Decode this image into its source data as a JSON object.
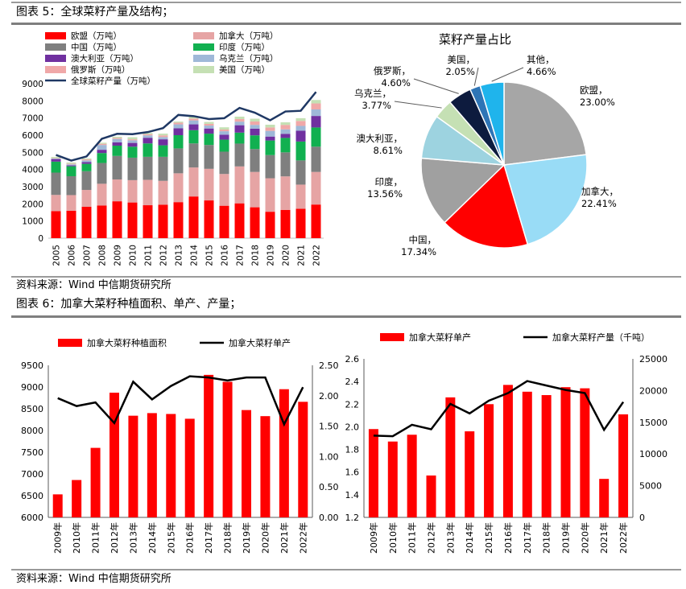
{
  "figures": {
    "fig5": {
      "title": "图表 5：全球菜籽产量及结构；"
    },
    "fig6": {
      "title": "图表 6：加拿大菜籽种植面积、单产、产量；"
    },
    "source1": "资料来源：Wind 中信期货研究所",
    "source2": "资料来源：Wind 中信期货研究所"
  },
  "chart_data": [
    {
      "id": "global-stacked",
      "type": "bar",
      "stacked": true,
      "categories": [
        "2005",
        "2006",
        "2007",
        "2008",
        "2009",
        "2010",
        "2011",
        "2012",
        "2013",
        "2014",
        "2015",
        "2016",
        "2017",
        "2018",
        "2019",
        "2020",
        "2021",
        "2022"
      ],
      "ylim": [
        0,
        9000
      ],
      "yticks": [
        0,
        1000,
        2000,
        3000,
        4000,
        5000,
        6000,
        7000,
        8000,
        9000
      ],
      "legend_position": "top-left",
      "series": [
        {
          "name": "欧盟（万吨）",
          "color": "#ff0000",
          "values": [
            1580,
            1600,
            1830,
            1900,
            2150,
            2080,
            1920,
            1950,
            2100,
            2430,
            2200,
            1890,
            2030,
            1800,
            1540,
            1650,
            1710,
            1960
          ]
        },
        {
          "name": "加拿大（万吨）",
          "color": "#e6a4a4",
          "values": [
            940,
            910,
            980,
            1270,
            1270,
            1300,
            1480,
            1390,
            1680,
            1690,
            1840,
            1850,
            2150,
            2060,
            1950,
            1950,
            1410,
            1900
          ]
        },
        {
          "name": "中国（万吨）",
          "color": "#7f7f7f",
          "values": [
            1300,
            1100,
            1090,
            1210,
            1370,
            1310,
            1340,
            1400,
            1450,
            1400,
            1390,
            1300,
            1330,
            1330,
            1350,
            1400,
            1410,
            1470
          ]
        },
        {
          "name": "印度（万吨）",
          "color": "#11b050",
          "values": [
            640,
            580,
            430,
            580,
            600,
            640,
            780,
            670,
            770,
            770,
            660,
            700,
            640,
            800,
            850,
            840,
            1100,
            1120
          ]
        },
        {
          "name": "澳大利亚（万吨）",
          "color": "#7030a0",
          "values": [
            150,
            50,
            100,
            190,
            190,
            220,
            330,
            350,
            400,
            340,
            300,
            290,
            430,
            390,
            230,
            240,
            630,
            670
          ]
        },
        {
          "name": "乌克兰（万吨）",
          "color": "#9fb8d8",
          "values": [
            30,
            60,
            100,
            280,
            200,
            150,
            140,
            130,
            230,
            230,
            170,
            200,
            210,
            220,
            330,
            260,
            280,
            380
          ]
        },
        {
          "name": "俄罗斯（万吨）",
          "color": "#f0a8a8",
          "values": [
            20,
            40,
            60,
            70,
            60,
            60,
            70,
            100,
            100,
            110,
            100,
            100,
            150,
            200,
            200,
            260,
            290,
            350
          ]
        },
        {
          "name": "美国（万吨）",
          "color": "#c5e0b4",
          "values": [
            70,
            70,
            50,
            60,
            70,
            120,
            70,
            100,
            60,
            110,
            110,
            130,
            140,
            160,
            160,
            150,
            160,
            200
          ]
        }
      ],
      "line": {
        "name": "全球菜籽产量（万吨）",
        "color": "#1f3864",
        "values": [
          4850,
          4520,
          4760,
          5790,
          6080,
          6060,
          6180,
          6410,
          7180,
          7110,
          6940,
          6990,
          7590,
          7310,
          6870,
          7380,
          7420,
          8520
        ]
      }
    },
    {
      "id": "global-share",
      "type": "pie",
      "title": "菜籽产量占比",
      "slices": [
        {
          "name": "欧盟",
          "value": 23.0,
          "label": "23.00%",
          "color": "#a6a6a6"
        },
        {
          "name": "加拿大",
          "value": 22.41,
          "label": "22.41%",
          "color": "#99dcf6"
        },
        {
          "name": "中国",
          "value": 17.34,
          "label": "17.34%",
          "color": "#ff0000"
        },
        {
          "name": "印度",
          "value": 13.56,
          "label": "13.56%",
          "color": "#a0a0a0"
        },
        {
          "name": "澳大利亚",
          "value": 8.61,
          "label": "8.61%",
          "color": "#9dd3e0"
        },
        {
          "name": "乌克兰",
          "value": 3.77,
          "label": "3.77%",
          "color": "#c5e0b4"
        },
        {
          "name": "俄罗斯",
          "value": 4.6,
          "label": "4.60%",
          "color": "#0d1b3e"
        },
        {
          "name": "美国",
          "value": 2.05,
          "label": "2.05%",
          "color": "#2e75b6"
        },
        {
          "name": "其他",
          "value": 4.66,
          "label": "4.66%",
          "color": "#1fb4ec"
        }
      ]
    },
    {
      "id": "canada-area-yield",
      "type": "bar",
      "categories": [
        "2009年",
        "2010年",
        "2011年",
        "2012年",
        "2013年",
        "2014年",
        "2015年",
        "2016年",
        "2017年",
        "2018年",
        "2019年",
        "2020年",
        "2021年",
        "2022年"
      ],
      "ylim": [
        6000,
        9500
      ],
      "yticks": [
        6000,
        6500,
        7000,
        7500,
        8000,
        8500,
        9000,
        9500
      ],
      "y2lim": [
        0,
        2.5
      ],
      "y2ticks": [
        "0.00",
        "0.50",
        "1.00",
        "1.50",
        "2.00",
        "2.50"
      ],
      "legend_position": "top",
      "series": [
        {
          "name": "加拿大菜籽种植面积",
          "color": "#ff0000",
          "values": [
            6530,
            6860,
            7600,
            8870,
            8340,
            8400,
            8380,
            8270,
            9280,
            9120,
            8470,
            8330,
            8950,
            8660
          ]
        }
      ],
      "line": {
        "name": "加拿大菜籽单产",
        "color": "#000000",
        "values": [
          1.96,
          1.83,
          1.89,
          1.55,
          2.23,
          1.94,
          2.16,
          2.32,
          2.3,
          2.25,
          2.3,
          2.3,
          1.53,
          2.14
        ]
      }
    },
    {
      "id": "canada-yield-output",
      "type": "bar",
      "categories": [
        "2009年",
        "2010年",
        "2011年",
        "2012年",
        "2013年",
        "2014年",
        "2015年",
        "2016年",
        "2017年",
        "2018年",
        "2019年",
        "2020年",
        "2021年",
        "2022年"
      ],
      "ylim": [
        1.2,
        2.6
      ],
      "yticks": [
        "1.2",
        "1.4",
        "1.6",
        "1.8",
        "2.0",
        "2.2",
        "2.4",
        "2.6"
      ],
      "y2lim": [
        0,
        25000
      ],
      "y2ticks": [
        0,
        5000,
        10000,
        15000,
        20000,
        25000
      ],
      "legend_position": "top",
      "series": [
        {
          "name": "加拿大菜籽单产",
          "color": "#ff0000",
          "values": [
            1.98,
            1.87,
            1.93,
            1.57,
            2.26,
            1.96,
            2.2,
            2.37,
            2.31,
            2.28,
            2.35,
            2.34,
            1.54,
            2.11
          ]
        }
      ],
      "line": {
        "name": "加拿大菜籽产量（千吨）",
        "color": "#000000",
        "values": [
          12900,
          12800,
          14600,
          13900,
          17900,
          16400,
          18400,
          19600,
          21500,
          20800,
          20100,
          19600,
          13800,
          18200
        ]
      }
    }
  ]
}
